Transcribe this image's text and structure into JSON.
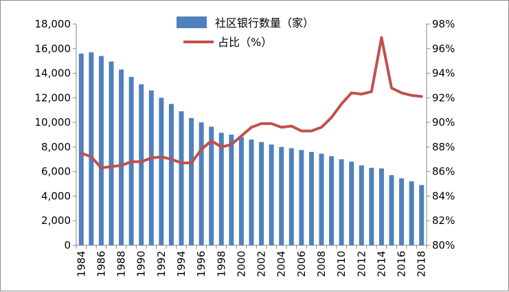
{
  "chart_data": {
    "type": "bar",
    "categories": [
      "1984",
      "1985",
      "1986",
      "1987",
      "1988",
      "1989",
      "1990",
      "1991",
      "1992",
      "1993",
      "1994",
      "1995",
      "1996",
      "1997",
      "1998",
      "1999",
      "2000",
      "2001",
      "2002",
      "2003",
      "2004",
      "2005",
      "2006",
      "2007",
      "2008",
      "2009",
      "2010",
      "2011",
      "2012",
      "2013",
      "2014",
      "2015",
      "2016",
      "2017",
      "2018"
    ],
    "x_tick_labels": [
      "1984",
      "1986",
      "1988",
      "1990",
      "1992",
      "1994",
      "1996",
      "1998",
      "2000",
      "2002",
      "2004",
      "2006",
      "2008",
      "2010",
      "2012",
      "2014",
      "2016",
      "2018"
    ],
    "series": [
      {
        "name": "社区银行数量（家）",
        "type": "bar",
        "axis": "left",
        "color": "#4f81bd",
        "values": [
          15600,
          15700,
          15400,
          14950,
          14300,
          13700,
          13100,
          12600,
          12000,
          11500,
          10900,
          10350,
          10000,
          9650,
          9150,
          9000,
          8800,
          8600,
          8400,
          8200,
          8000,
          7900,
          7750,
          7600,
          7450,
          7250,
          7000,
          6800,
          6500,
          6300,
          6250,
          5700,
          5450,
          5200,
          4900
        ]
      },
      {
        "name": "占比（%）",
        "type": "line",
        "axis": "right",
        "color": "#c0504d",
        "values": [
          87.5,
          87.2,
          86.3,
          86.4,
          86.5,
          86.8,
          86.8,
          87.1,
          87.2,
          87.0,
          86.7,
          86.7,
          87.8,
          88.5,
          88.0,
          88.2,
          88.9,
          89.6,
          89.9,
          89.9,
          89.6,
          89.7,
          89.3,
          89.3,
          89.6,
          90.4,
          91.5,
          92.4,
          92.3,
          92.5,
          96.9,
          92.8,
          92.4,
          92.2,
          92.1
        ]
      }
    ],
    "left_axis": {
      "ylim": [
        0,
        18000
      ],
      "ticks": [
        0,
        2000,
        4000,
        6000,
        8000,
        10000,
        12000,
        14000,
        16000,
        18000
      ],
      "tick_labels": [
        "0",
        "2,000",
        "4,000",
        "6,000",
        "8,000",
        "10,000",
        "12,000",
        "14,000",
        "16,000",
        "18,000"
      ]
    },
    "right_axis": {
      "ylim": [
        80,
        98
      ],
      "ticks": [
        80,
        82,
        84,
        86,
        88,
        90,
        92,
        94,
        96,
        98
      ],
      "tick_labels": [
        "80%",
        "82%",
        "84%",
        "86%",
        "88%",
        "90%",
        "92%",
        "94%",
        "96%",
        "98%"
      ]
    },
    "grid": false,
    "legend_position": "top-center"
  }
}
